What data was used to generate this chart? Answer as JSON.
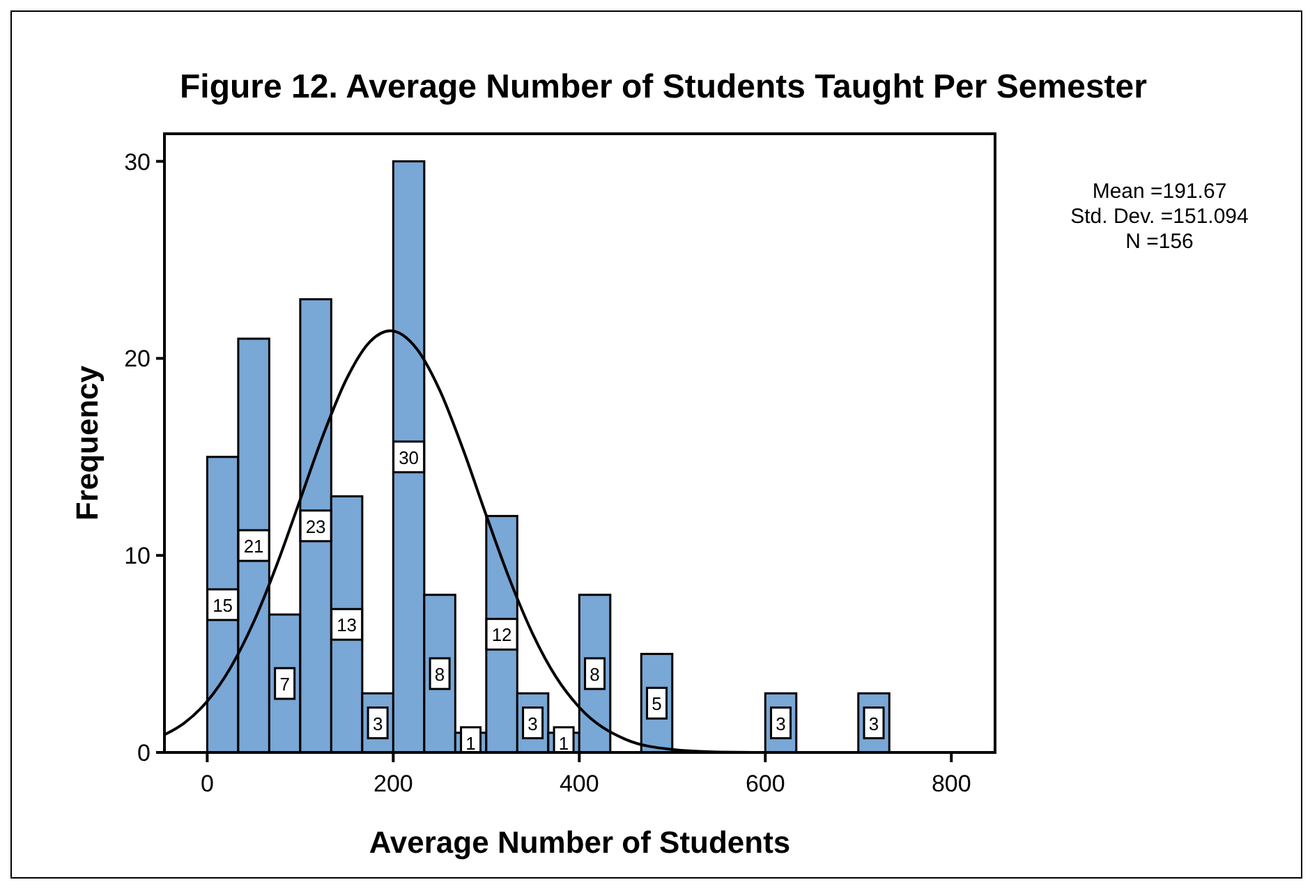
{
  "chart_data": {
    "type": "histogram",
    "title": "Figure 12. Average Number of Students Taught Per Semester",
    "xlabel": "Average Number of Students",
    "ylabel": "Frequency",
    "annotations": [
      "Mean =191.67",
      "Std. Dev. =151.094",
      "N =156"
    ],
    "xlim": [
      -46,
      847
    ],
    "xticks": [
      0,
      200,
      400,
      600,
      800
    ],
    "ylim": [
      0,
      31.4
    ],
    "yticks": [
      0,
      10,
      20,
      30
    ],
    "grid": false,
    "series": [
      {
        "color": "#79a7d6",
        "bins": [
          0,
          33.33,
          66.67,
          100,
          133.33,
          166.67,
          200,
          233.33,
          266.67,
          300,
          333.33,
          366.67,
          400,
          433.33,
          466.67,
          500,
          533.33,
          566.67,
          600,
          633.33,
          666.67,
          700,
          733.33
        ],
        "values": [
          15,
          21,
          7,
          23,
          13,
          3,
          30,
          8,
          1,
          12,
          3,
          1,
          8,
          0,
          5,
          0,
          0,
          0,
          3,
          0,
          0,
          3
        ],
        "value_labels": [
          "15",
          "21",
          "7",
          "23",
          "13",
          "3",
          "30",
          "8",
          "1",
          "12",
          "3",
          "1",
          "8",
          null,
          "5",
          null,
          null,
          null,
          "3",
          null,
          null,
          "3"
        ]
      },
      {
        "type": "line",
        "color": "#000000",
        "marker": "none",
        "line_style": "solid",
        "x": [
          -46,
          -25,
          0,
          25,
          50,
          75,
          100,
          125,
          150,
          175,
          197,
          225,
          250,
          275,
          300,
          325,
          350,
          375,
          400,
          450,
          500,
          550,
          600,
          700,
          847
        ],
        "values": [
          0.9,
          1.48,
          2.6,
          4.3,
          6.63,
          9.55,
          12.84,
          16.15,
          18.98,
          20.85,
          21.4,
          20.5,
          18.38,
          15.39,
          12.03,
          8.8,
          6.01,
          3.83,
          2.29,
          0.66,
          0.15,
          0.02,
          0,
          0,
          0
        ]
      }
    ]
  }
}
